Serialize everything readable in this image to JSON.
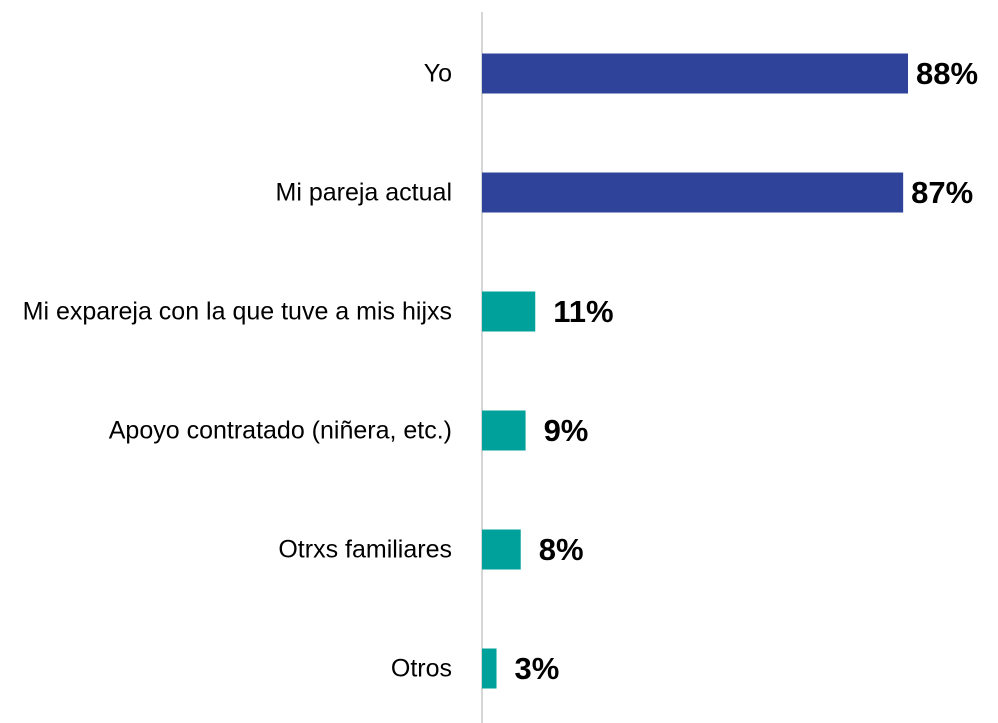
{
  "chart_data": {
    "type": "bar",
    "orientation": "horizontal",
    "categories": [
      "Yo",
      "Mi pareja actual",
      "Mi expareja con la que tuve a mis hijxs",
      "Apoyo contratado (niñera, etc.)",
      "Otrxs familiares",
      "Otros"
    ],
    "values": [
      88,
      87,
      11,
      9,
      8,
      3
    ],
    "value_labels": [
      "88%",
      "87%",
      "11%",
      "9%",
      "8%",
      "3%"
    ],
    "colors": [
      "#2e4399",
      "#2e4399",
      "#00a19a",
      "#00a19a",
      "#00a19a",
      "#00a19a"
    ]
  }
}
